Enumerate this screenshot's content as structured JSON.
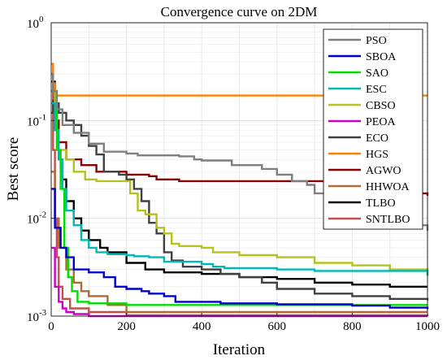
{
  "chart_data": {
    "type": "line",
    "title": "Convergence curve on 2DM",
    "xlabel": "Iteration",
    "ylabel": "Best score",
    "xlim": [
      0,
      1000
    ],
    "ylim": [
      0.001,
      1
    ],
    "yscale": "log",
    "grid": true,
    "legend_position": "top-right",
    "x_ticks": [
      "0",
      "200",
      "400",
      "600",
      "800",
      "1000"
    ],
    "y_ticks": [
      {
        "base": "10",
        "exp": "0"
      },
      {
        "base": "10",
        "exp": "-1"
      },
      {
        "base": "10",
        "exp": "-2"
      },
      {
        "base": "10",
        "exp": "-3"
      }
    ],
    "series": [
      {
        "name": "PSO",
        "color": "#7f7f7f",
        "points": [
          [
            0,
            0.3
          ],
          [
            5,
            0.2
          ],
          [
            15,
            0.13
          ],
          [
            30,
            0.09
          ],
          [
            60,
            0.075
          ],
          [
            100,
            0.058
          ],
          [
            140,
            0.048
          ],
          [
            200,
            0.046
          ],
          [
            230,
            0.044
          ],
          [
            300,
            0.044
          ],
          [
            340,
            0.043
          ],
          [
            380,
            0.04
          ],
          [
            400,
            0.039
          ],
          [
            480,
            0.035
          ],
          [
            560,
            0.032
          ],
          [
            600,
            0.028
          ],
          [
            640,
            0.024
          ],
          [
            680,
            0.022
          ],
          [
            700,
            0.018
          ],
          [
            740,
            0.017
          ],
          [
            790,
            0.016
          ],
          [
            850,
            0.015
          ],
          [
            900,
            0.011
          ],
          [
            940,
            0.009
          ],
          [
            980,
            0.0085
          ],
          [
            1000,
            0.0075
          ]
        ]
      },
      {
        "name": "SBOA",
        "color": "#0000cc",
        "points": [
          [
            0,
            0.02
          ],
          [
            10,
            0.008
          ],
          [
            25,
            0.005
          ],
          [
            40,
            0.004
          ],
          [
            60,
            0.003
          ],
          [
            100,
            0.0028
          ],
          [
            140,
            0.0025
          ],
          [
            170,
            0.002
          ],
          [
            200,
            0.0019
          ],
          [
            240,
            0.0018
          ],
          [
            260,
            0.0017
          ],
          [
            300,
            0.0016
          ],
          [
            320,
            0.0016
          ],
          [
            330,
            0.0014
          ],
          [
            400,
            0.0014
          ],
          [
            450,
            0.00135
          ],
          [
            600,
            0.00132
          ],
          [
            800,
            0.00128
          ],
          [
            900,
            0.00122
          ],
          [
            1000,
            0.00118
          ]
        ]
      },
      {
        "name": "SAO",
        "color": "#00dd00",
        "points": [
          [
            0,
            0.2
          ],
          [
            15,
            0.05
          ],
          [
            25,
            0.02
          ],
          [
            35,
            0.005
          ],
          [
            45,
            0.0025
          ],
          [
            55,
            0.0018
          ],
          [
            70,
            0.0014
          ],
          [
            100,
            0.00135
          ],
          [
            200,
            0.0013
          ],
          [
            1000,
            0.0013
          ]
        ]
      },
      {
        "name": "ESC",
        "color": "#00b8b8",
        "points": [
          [
            0,
            0.15
          ],
          [
            10,
            0.08
          ],
          [
            20,
            0.04
          ],
          [
            30,
            0.02
          ],
          [
            40,
            0.012
          ],
          [
            60,
            0.0085
          ],
          [
            80,
            0.006
          ],
          [
            100,
            0.005
          ],
          [
            120,
            0.0045
          ],
          [
            150,
            0.0043
          ],
          [
            200,
            0.0042
          ],
          [
            220,
            0.0041
          ],
          [
            260,
            0.004
          ],
          [
            300,
            0.0036
          ],
          [
            400,
            0.0034
          ],
          [
            430,
            0.0032
          ],
          [
            460,
            0.0031
          ],
          [
            600,
            0.003
          ],
          [
            700,
            0.0029
          ],
          [
            1000,
            0.0026
          ]
        ]
      },
      {
        "name": "CBSO",
        "color": "#b5c21a",
        "points": [
          [
            0,
            0.2
          ],
          [
            10,
            0.08
          ],
          [
            20,
            0.05
          ],
          [
            40,
            0.04
          ],
          [
            60,
            0.03
          ],
          [
            90,
            0.025
          ],
          [
            120,
            0.024
          ],
          [
            200,
            0.024
          ],
          [
            210,
            0.018
          ],
          [
            230,
            0.012
          ],
          [
            250,
            0.011
          ],
          [
            280,
            0.008
          ],
          [
            300,
            0.007
          ],
          [
            320,
            0.0055
          ],
          [
            340,
            0.0052
          ],
          [
            400,
            0.005
          ],
          [
            430,
            0.0045
          ],
          [
            500,
            0.0042
          ],
          [
            600,
            0.004
          ],
          [
            700,
            0.0035
          ],
          [
            800,
            0.0033
          ],
          [
            900,
            0.003
          ],
          [
            1000,
            0.0026
          ]
        ]
      },
      {
        "name": "PEOA",
        "color": "#cc00cc",
        "points": [
          [
            0,
            0.005
          ],
          [
            10,
            0.002
          ],
          [
            20,
            0.0014
          ],
          [
            30,
            0.0012
          ],
          [
            40,
            0.0011
          ],
          [
            60,
            0.00105
          ],
          [
            100,
            0.001
          ],
          [
            1000,
            0.001
          ]
        ]
      },
      {
        "name": "ECO",
        "color": "#404040",
        "points": [
          [
            0,
            0.12
          ],
          [
            5,
            0.16
          ],
          [
            10,
            0.15
          ],
          [
            20,
            0.12
          ],
          [
            40,
            0.1
          ],
          [
            60,
            0.09
          ],
          [
            80,
            0.07
          ],
          [
            100,
            0.055
          ],
          [
            120,
            0.045
          ],
          [
            140,
            0.03
          ],
          [
            160,
            0.03
          ],
          [
            180,
            0.028
          ],
          [
            200,
            0.025
          ],
          [
            220,
            0.02
          ],
          [
            240,
            0.015
          ],
          [
            260,
            0.009
          ],
          [
            280,
            0.007
          ],
          [
            300,
            0.0045
          ],
          [
            320,
            0.0037
          ],
          [
            350,
            0.0032
          ],
          [
            400,
            0.003
          ],
          [
            450,
            0.0027
          ],
          [
            500,
            0.0025
          ],
          [
            560,
            0.0022
          ],
          [
            600,
            0.0019
          ],
          [
            700,
            0.0017
          ],
          [
            800,
            0.0016
          ],
          [
            900,
            0.0015
          ],
          [
            1000,
            0.00145
          ]
        ]
      },
      {
        "name": "HGS",
        "color": "#ff8000",
        "points": [
          [
            0,
            0.38
          ],
          [
            5,
            0.24
          ],
          [
            10,
            0.18
          ],
          [
            1000,
            0.18
          ]
        ]
      },
      {
        "name": "AGWO",
        "color": "#8b0000",
        "points": [
          [
            0,
            0.2
          ],
          [
            10,
            0.1
          ],
          [
            20,
            0.06
          ],
          [
            40,
            0.04
          ],
          [
            80,
            0.035
          ],
          [
            120,
            0.03
          ],
          [
            200,
            0.028
          ],
          [
            260,
            0.027
          ],
          [
            280,
            0.025
          ],
          [
            340,
            0.024
          ],
          [
            400,
            0.024
          ],
          [
            600,
            0.024
          ],
          [
            800,
            0.023
          ],
          [
            980,
            0.022
          ],
          [
            985,
            0.018
          ],
          [
            1000,
            0.017
          ]
        ]
      },
      {
        "name": "HHWOA",
        "color": "#b06a36",
        "points": [
          [
            0,
            0.03
          ],
          [
            10,
            0.01
          ],
          [
            20,
            0.005
          ],
          [
            40,
            0.003
          ],
          [
            60,
            0.0022
          ],
          [
            80,
            0.0018
          ],
          [
            100,
            0.0016
          ],
          [
            150,
            0.0013
          ],
          [
            200,
            0.0011
          ],
          [
            1000,
            0.0011
          ]
        ]
      },
      {
        "name": "TLBO",
        "color": "#000000",
        "points": [
          [
            0,
            0.25
          ],
          [
            10,
            0.08
          ],
          [
            20,
            0.04
          ],
          [
            30,
            0.025
          ],
          [
            40,
            0.015
          ],
          [
            60,
            0.01
          ],
          [
            80,
            0.0075
          ],
          [
            100,
            0.006
          ],
          [
            130,
            0.005
          ],
          [
            150,
            0.0045
          ],
          [
            200,
            0.0035
          ],
          [
            250,
            0.003
          ],
          [
            300,
            0.0028
          ],
          [
            400,
            0.0027
          ],
          [
            500,
            0.0025
          ],
          [
            600,
            0.0024
          ],
          [
            700,
            0.0022
          ],
          [
            800,
            0.0021
          ],
          [
            900,
            0.002
          ],
          [
            1000,
            0.002
          ]
        ]
      },
      {
        "name": "SNTLBO",
        "color": "#c0504d",
        "points": [
          [
            0,
            0.3
          ],
          [
            5,
            0.05
          ],
          [
            10,
            0.01
          ],
          [
            15,
            0.004
          ],
          [
            20,
            0.002
          ],
          [
            30,
            0.0015
          ],
          [
            50,
            0.0012
          ],
          [
            100,
            0.0011
          ],
          [
            200,
            0.00102
          ],
          [
            1000,
            0.001
          ]
        ]
      }
    ]
  }
}
